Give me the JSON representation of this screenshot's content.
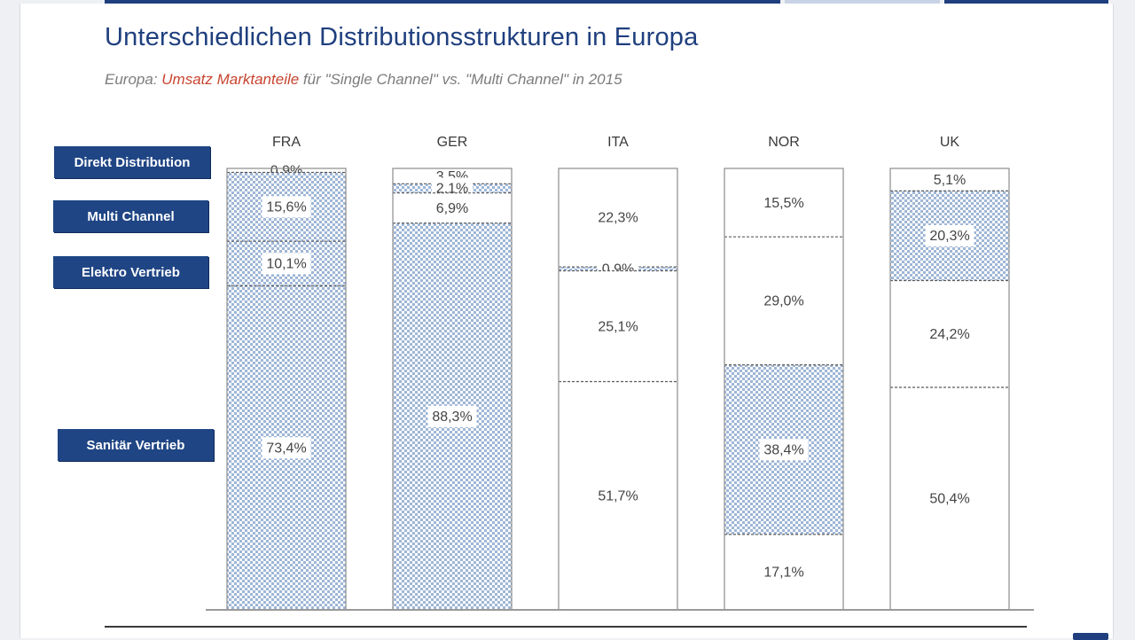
{
  "colors": {
    "accent": "#1f3f7e",
    "label_bg": "#1f4584",
    "hatch": "#9eb6d6",
    "subtitle_highlight": "#c8452f"
  },
  "header": {
    "title": "Unterschiedlichen Distributionsstrukturen in Europa",
    "subtitle_pre": "Europa: ",
    "subtitle_highlight": "Umsatz Marktanteile",
    "subtitle_post": " für \"Single Channel\" vs. \"Multi Channel\" in 2015"
  },
  "legend": [
    {
      "key": "direkt",
      "label": "Direkt Distribution"
    },
    {
      "key": "multi",
      "label": "Multi Channel"
    },
    {
      "key": "elektro",
      "label": "Elektro Vertrieb"
    },
    {
      "key": "sanitaer",
      "label": "Sanitär Vertrieb"
    }
  ],
  "chart_data": {
    "type": "bar",
    "stacked": true,
    "categories": [
      "FRA",
      "GER",
      "ITA",
      "NOR",
      "UK"
    ],
    "series": [
      {
        "name": "Direkt Distribution",
        "key": "direkt",
        "values": [
          0.9,
          3.5,
          null,
          null,
          5.1
        ],
        "labels": [
          "0,9%",
          "3,5%",
          "",
          "",
          "5,1%"
        ]
      },
      {
        "name": "Multi Channel",
        "key": "multi",
        "values": [
          15.6,
          2.1,
          22.3,
          15.5,
          20.3
        ],
        "labels": [
          "15,6%",
          "2,1%",
          "22,3%",
          "15,5%",
          "20,3%"
        ]
      },
      {
        "name": "Elektro Vertrieb",
        "key": "elektro",
        "values": [
          10.1,
          6.9,
          0.9,
          29.0,
          24.2
        ],
        "labels": [
          "10,1%",
          "6,9%",
          "0,9%",
          "29,0%",
          "24,2%"
        ]
      },
      {
        "name": "Sanitär Vertrieb",
        "key": "sanitaer",
        "values": [
          73.4,
          88.3,
          25.1,
          38.4,
          50.4
        ],
        "labels": [
          "73,4%",
          "88,3%",
          "25,1%",
          "38,4%",
          "50,4%"
        ]
      },
      {
        "name": "",
        "key": "other",
        "values": [
          null,
          null,
          51.7,
          17.1,
          null
        ],
        "labels": [
          "",
          "",
          "51,7%",
          "17,1%",
          ""
        ]
      }
    ],
    "hatched": [
      [
        false,
        false,
        true,
        false,
        false
      ],
      [
        true,
        true,
        false,
        false,
        true
      ],
      [
        true,
        false,
        true,
        false,
        false
      ],
      [
        true,
        true,
        false,
        true,
        false
      ],
      [
        true,
        false,
        false,
        false,
        true
      ]
    ],
    "ylim": [
      0,
      100
    ],
    "grid": false,
    "legend_position": "left"
  }
}
